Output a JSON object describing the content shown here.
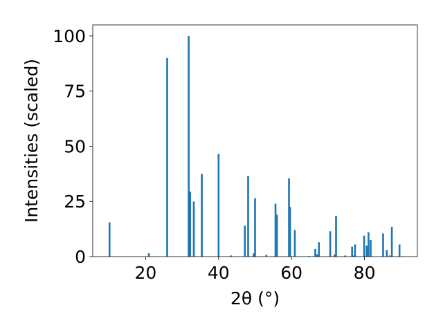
{
  "chart_data": {
    "type": "bar",
    "xlabel": "2θ (°)",
    "ylabel": "Intensities (scaled)",
    "xlim": [
      5.5,
      94.5
    ],
    "ylim": [
      0,
      105
    ],
    "x_ticks": [
      20,
      40,
      60,
      80
    ],
    "y_ticks": [
      0,
      25,
      50,
      75,
      100
    ],
    "grid": false,
    "bar_color": "#1f77b4",
    "bar_width": 0.5,
    "series": [
      {
        "x": [
          10.1,
          20.9,
          25.9,
          31.8,
          32.2,
          33.2,
          35.4,
          40.0,
          43.4,
          47.2,
          48.1,
          49.6,
          50.0,
          53.1,
          55.6,
          56.0,
          59.3,
          59.6,
          60.9,
          64.7,
          66.5,
          67.0,
          67.5,
          70.6,
          71.8,
          72.2,
          74.7,
          76.6,
          77.1,
          77.4,
          79.9,
          80.6,
          81.1,
          81.7,
          85.1,
          86.1,
          86.9,
          87.5,
          89.6
        ],
        "y": [
          15.5,
          1.5,
          90.0,
          100.0,
          29.5,
          25.0,
          37.5,
          46.5,
          0.5,
          14.0,
          36.5,
          1.5,
          26.5,
          0.8,
          24.0,
          19.0,
          35.5,
          22.5,
          12.0,
          0.3,
          3.5,
          1.0,
          6.5,
          11.5,
          1.0,
          18.5,
          0.5,
          4.5,
          0.5,
          5.5,
          9.5,
          5.0,
          11.0,
          7.5,
          10.5,
          3.0,
          0.5,
          13.5,
          5.5
        ]
      }
    ]
  }
}
